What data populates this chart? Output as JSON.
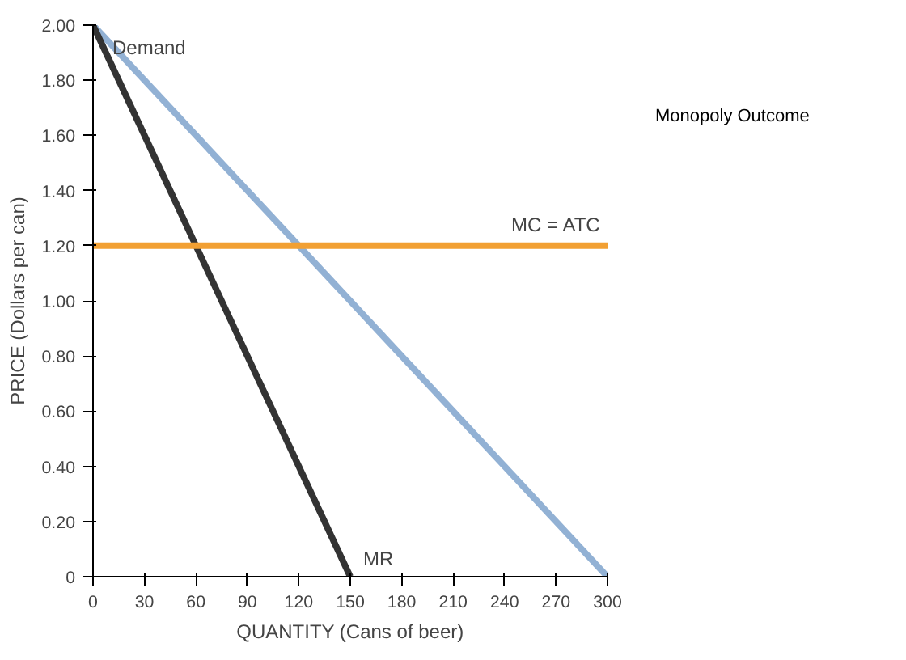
{
  "chart_data": {
    "type": "line",
    "xlabel": "QUANTITY (Cans of beer)",
    "ylabel": "PRICE (Dollars per can)",
    "xlim": [
      0,
      300
    ],
    "ylim": [
      0,
      2
    ],
    "xticks": [
      0,
      30,
      60,
      90,
      120,
      150,
      180,
      210,
      240,
      270,
      300
    ],
    "yticks": [
      0,
      {
        "value": 0.2,
        "label": "0.20"
      },
      {
        "value": 0.4,
        "label": "0.40"
      },
      {
        "value": 0.6,
        "label": "0.60"
      },
      {
        "value": 0.8,
        "label": "0.80"
      },
      {
        "value": 1,
        "label": "1.00"
      },
      {
        "value": 1.2,
        "label": "1.20"
      },
      {
        "value": 1.4,
        "label": "1.40"
      },
      {
        "value": 1.6,
        "label": "1.60"
      },
      {
        "value": 1.8,
        "label": "1.80"
      },
      {
        "value": 2,
        "label": "2.00"
      }
    ],
    "grid": false,
    "series": [
      {
        "name": "Demand",
        "color": "#92b1d4",
        "x": [
          0,
          300
        ],
        "values": [
          2,
          0
        ]
      },
      {
        "name": "MR",
        "color": "#333333",
        "x": [
          0,
          150
        ],
        "values": [
          2,
          0
        ]
      },
      {
        "name": "MC = ATC",
        "color": "#f2a033",
        "x": [
          0,
          300
        ],
        "values": [
          1.2,
          1.2
        ]
      }
    ],
    "annotations": [
      "Monopoly Outcome"
    ]
  }
}
